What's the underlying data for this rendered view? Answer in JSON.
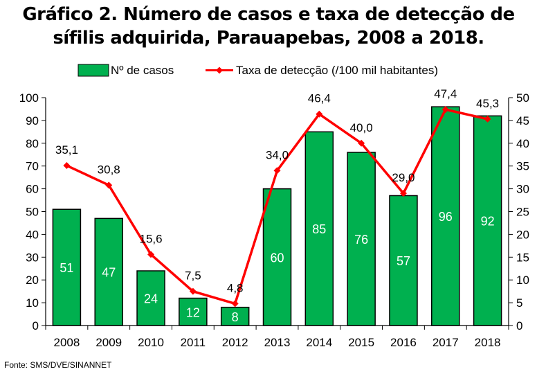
{
  "title_line1": "Gráfico 2. Número de casos e taxa de detecção de",
  "title_line2": "sífilis adquirida, Parauapebas, 2008 a 2018.",
  "source": "Fonte: SMS/DVE/SINANNET",
  "colors": {
    "bar": "#00b04f",
    "line": "#ff0000"
  },
  "chart_data": {
    "type": "bar",
    "categories": [
      "2008",
      "2009",
      "2010",
      "2011",
      "2012",
      "2013",
      "2014",
      "2015",
      "2016",
      "2017",
      "2018"
    ],
    "series": [
      {
        "name": "Nº de casos",
        "type": "bar",
        "axis": "left",
        "values": [
          51,
          47,
          24,
          12,
          8,
          60,
          85,
          76,
          57,
          96,
          92
        ],
        "labels": [
          "51",
          "47",
          "24",
          "12",
          "8",
          "60",
          "85",
          "76",
          "57",
          "96",
          "92"
        ]
      },
      {
        "name": "Taxa de detecção (/100 mil habitantes)",
        "type": "line",
        "axis": "right",
        "values": [
          35.1,
          30.8,
          15.6,
          7.5,
          4.8,
          34.0,
          46.4,
          40.0,
          29.0,
          47.4,
          45.3
        ],
        "labels": [
          "35,1",
          "30,8",
          "15,6",
          "7,5",
          "4,8",
          "34,0",
          "46,4",
          "40,0",
          "29,0",
          "47,4",
          "45,3"
        ]
      }
    ],
    "y_left": {
      "min": 0,
      "max": 100,
      "ticks": [
        0,
        10,
        20,
        30,
        40,
        50,
        60,
        70,
        80,
        90,
        100
      ]
    },
    "y_right": {
      "min": 0,
      "max": 50,
      "ticks": [
        0,
        5,
        10,
        15,
        20,
        25,
        30,
        35,
        40,
        45,
        50
      ]
    },
    "legend_position": "top",
    "grid": false
  }
}
